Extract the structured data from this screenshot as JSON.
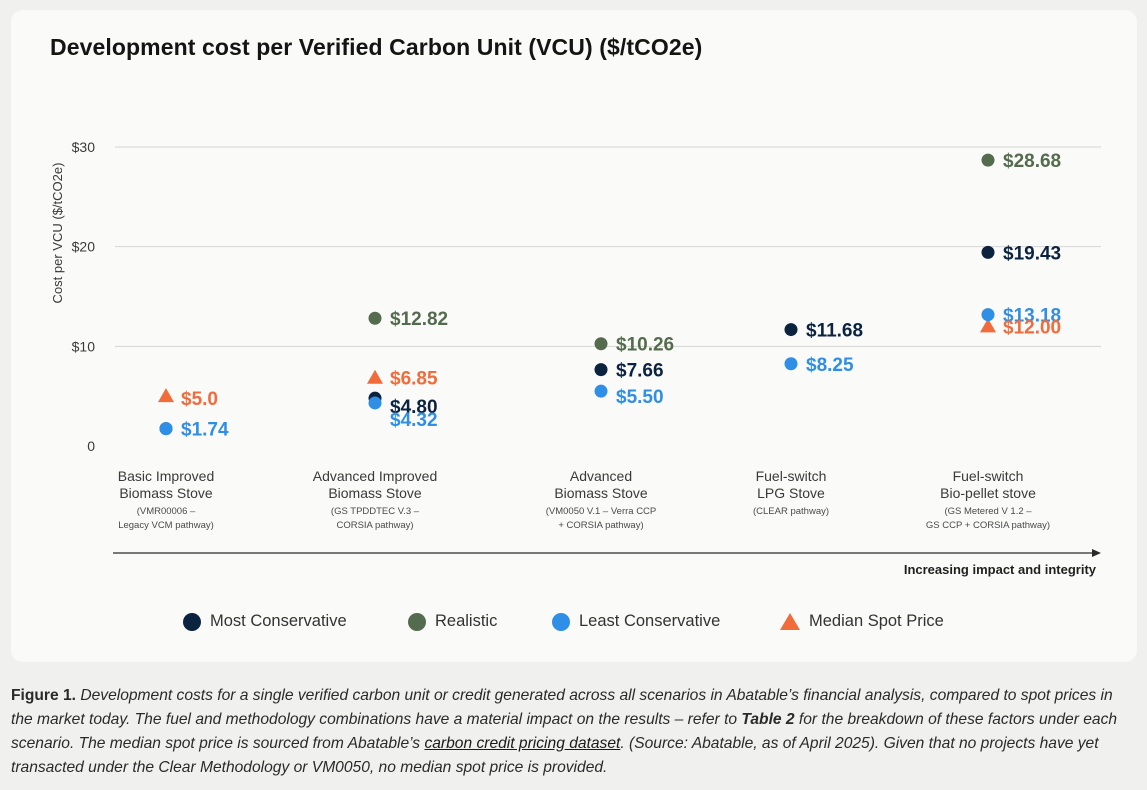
{
  "chart_data": {
    "type": "scatter",
    "title": "Development cost per Verified Carbon Unit (VCU) ($/tCO2e)",
    "ylabel": "Cost per VCU ($/tCO2e)",
    "xlabel": "Increasing impact and integrity",
    "ylim": [
      0,
      30
    ],
    "yticks": [
      {
        "value": 0,
        "label": "0"
      },
      {
        "value": 10,
        "label": "$10"
      },
      {
        "value": 20,
        "label": "$20"
      },
      {
        "value": 30,
        "label": "$30"
      }
    ],
    "categories": [
      {
        "line1": "Basic Improved",
        "line2": "Biomass Stove",
        "sub1": "(VMR00006 –",
        "sub2": "Legacy VCM pathway)"
      },
      {
        "line1": "Advanced Improved",
        "line2": "Biomass Stove",
        "sub1": "(GS TPDDTEC V.3 –",
        "sub2": "CORSIA pathway)"
      },
      {
        "line1": "Advanced",
        "line2": "Biomass Stove",
        "sub1": "(VM0050 V.1 – Verra CCP",
        "sub2": "+ CORSIA pathway)"
      },
      {
        "line1": "Fuel-switch",
        "line2": "LPG Stove",
        "sub1": "(CLEAR pathway)",
        "sub2": ""
      },
      {
        "line1": "Fuel-switch",
        "line2": "Bio-pellet stove",
        "sub1": "(GS Metered V 1.2 –",
        "sub2": "GS CCP + CORSIA pathway)"
      }
    ],
    "series": [
      {
        "name": "Most Conservative",
        "marker": "circle",
        "color": "#0c2340",
        "points": [
          {
            "cat": 0,
            "y": 1.74,
            "label": "",
            "show": false
          },
          {
            "cat": 1,
            "y": 4.8,
            "label": "$4.80",
            "show": true
          },
          {
            "cat": 2,
            "y": 7.66,
            "label": "$7.66",
            "show": true
          },
          {
            "cat": 3,
            "y": 11.68,
            "label": "$11.68",
            "show": true
          },
          {
            "cat": 4,
            "y": 19.43,
            "label": "$19.43",
            "show": true
          }
        ]
      },
      {
        "name": "Realistic",
        "marker": "circle",
        "color": "#556b4d",
        "points": [
          {
            "cat": 1,
            "y": 12.82,
            "label": "$12.82",
            "show": true
          },
          {
            "cat": 2,
            "y": 10.26,
            "label": "$10.26",
            "show": true
          },
          {
            "cat": 4,
            "y": 28.68,
            "label": "$28.68",
            "show": true
          }
        ]
      },
      {
        "name": "Least Conservative",
        "marker": "circle",
        "color": "#2f8ee6",
        "points": [
          {
            "cat": 0,
            "y": 1.74,
            "label": "$1.74",
            "show": true
          },
          {
            "cat": 1,
            "y": 4.32,
            "label": "$4.32",
            "show": true
          },
          {
            "cat": 2,
            "y": 5.5,
            "label": "$5.50",
            "show": true
          },
          {
            "cat": 3,
            "y": 8.25,
            "label": "$8.25",
            "show": true
          },
          {
            "cat": 4,
            "y": 13.18,
            "label": "$13.18",
            "show": true
          }
        ]
      },
      {
        "name": "Median Spot Price",
        "marker": "triangle",
        "color": "#f26b3a",
        "points": [
          {
            "cat": 0,
            "y": 5.0,
            "label": "$5.0",
            "show": true
          },
          {
            "cat": 1,
            "y": 6.85,
            "label": "$6.85",
            "show": true
          },
          {
            "cat": 4,
            "y": 12.0,
            "label": "$12.00",
            "show": true
          }
        ]
      }
    ]
  },
  "caption": {
    "fig_label": "Figure 1.",
    "text1": " Development costs for a single verified carbon unit or credit generated across all scenarios in Abatable’s financial analysis, compared to spot prices in the market today. The fuel and methodology combinations have a material impact on the results – refer to ",
    "table_ref": "Table 2",
    "text2": " for the breakdown of these factors under each scenario. The median spot price is sourced from Abatable’s ",
    "link_text": "carbon credit pricing dataset",
    "text3": ". (Source: Abatable, as of April 2025). Given that no projects have yet transacted under the Clear Methodology or VM0050, no median spot price is provided."
  }
}
